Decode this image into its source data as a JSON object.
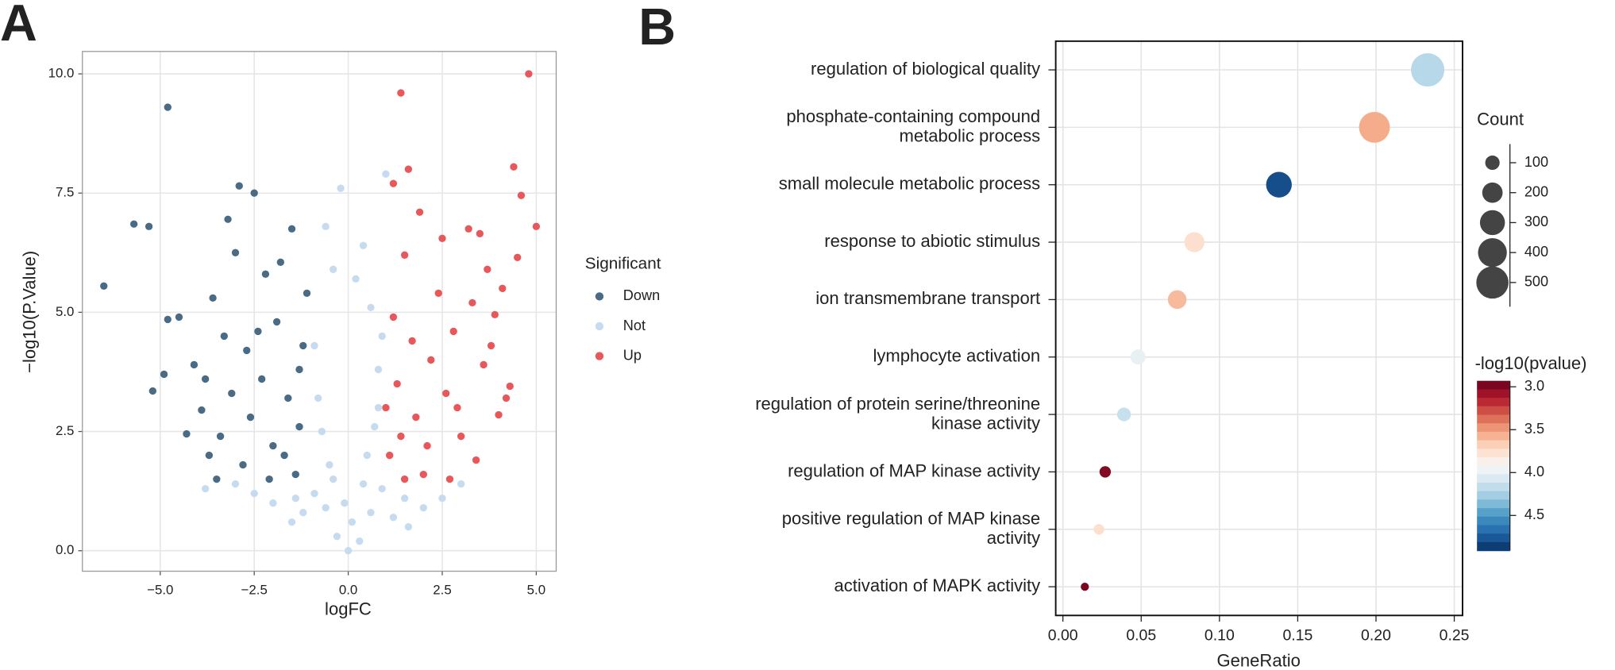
{
  "panel_labels": [
    "A",
    "B"
  ],
  "chart_data": [
    {
      "type": "scatter",
      "x_label": "logFC",
      "y_label": "−log10(P.Value)",
      "legend_title": "Significant",
      "xlim": [
        -7.07,
        5.53
      ],
      "ylim": [
        -0.43,
        10.47
      ],
      "grid": true,
      "xticks": [
        {
          "value": -5,
          "label": "−5.0"
        },
        {
          "value": -2.5,
          "label": "−2.5"
        },
        {
          "value": 0,
          "label": "0.0"
        },
        {
          "value": 2.5,
          "label": "2.5"
        },
        {
          "value": 5,
          "label": "5.0"
        }
      ],
      "yticks": [
        {
          "value": 0,
          "label": "0.0"
        },
        {
          "value": 2.5,
          "label": "2.5"
        },
        {
          "value": 5,
          "label": "5.0"
        },
        {
          "value": 7.5,
          "label": "7.5"
        },
        {
          "value": 10,
          "label": "10.0"
        }
      ],
      "series": [
        {
          "name": "Down",
          "color": "#4a6b85",
          "x": [
            -6.5,
            -5.7,
            -5.3,
            -4.8,
            -4.8,
            -4.9,
            -5.2,
            -4.5,
            -4.3,
            -3.9,
            -3.7,
            -3.5,
            -2.9,
            -2.5,
            -3.2,
            -2.2,
            -1.8,
            -1.5,
            -3.0,
            -3.6,
            -4.1,
            -3.3,
            -2.7,
            -2.3,
            -1.9,
            -1.6,
            -1.3,
            -2.0,
            -2.6,
            -3.1,
            -1.4,
            -2.1,
            -1.2,
            -1.1,
            -2.8,
            -3.4,
            -1.7,
            -2.4,
            -1.3,
            -3.8
          ],
          "y": [
            5.55,
            6.85,
            6.8,
            9.3,
            4.85,
            3.7,
            3.35,
            4.9,
            2.45,
            2.95,
            2.0,
            1.5,
            7.65,
            7.5,
            6.95,
            5.8,
            6.05,
            6.75,
            6.25,
            5.3,
            3.9,
            4.5,
            4.2,
            3.6,
            4.8,
            3.2,
            2.6,
            2.2,
            2.8,
            3.3,
            1.6,
            1.5,
            4.3,
            5.4,
            1.8,
            2.4,
            2.0,
            4.6,
            3.8,
            3.6
          ]
        },
        {
          "name": "Not",
          "color": "#c6dbef",
          "x": [
            0,
            0.3,
            -0.3,
            0.6,
            -0.6,
            0.9,
            -0.9,
            1.2,
            -1.2,
            1.6,
            -1.5,
            2.0,
            -2.0,
            0.5,
            -0.5,
            0.8,
            -0.8,
            0.9,
            -0.9,
            0.6,
            -0.4,
            -0.2,
            0.2,
            1.0,
            0.4,
            -0.6,
            2.5,
            -2.5,
            1.5,
            -1.4,
            0.1,
            -0.1,
            0.4,
            -0.4,
            3.0,
            -3.0,
            -3.8,
            0.7,
            -0.7,
            0.8
          ],
          "y": [
            0,
            0.2,
            0.3,
            0.8,
            0.9,
            1.3,
            1.2,
            0.7,
            0.8,
            0.5,
            0.6,
            0.9,
            1.0,
            2.0,
            1.8,
            3.0,
            3.2,
            4.5,
            4.3,
            5.1,
            5.9,
            7.6,
            5.7,
            7.9,
            6.4,
            6.8,
            1.1,
            1.2,
            1.1,
            1.1,
            0.6,
            1.0,
            1.4,
            1.5,
            1.4,
            1.4,
            1.3,
            2.6,
            2.5,
            3.8
          ]
        },
        {
          "name": "Up",
          "color": "#e8575a",
          "x": [
            4.8,
            1.4,
            4.4,
            4.6,
            5.0,
            1.6,
            3.2,
            3.5,
            4.5,
            4.1,
            1.9,
            2.5,
            1.2,
            1.5,
            3.7,
            3.9,
            4.3,
            4.2,
            4.0,
            3.4,
            3.0,
            2.6,
            2.2,
            1.8,
            1.3,
            1.1,
            1.5,
            2.0,
            2.8,
            3.3,
            2.4,
            1.7,
            1.2,
            1.0,
            3.6,
            2.9,
            3.8,
            1.4,
            2.1,
            2.7
          ],
          "y": [
            10.0,
            9.6,
            8.05,
            7.45,
            6.8,
            8.0,
            6.75,
            6.65,
            6.15,
            5.5,
            7.1,
            6.55,
            7.7,
            6.2,
            5.9,
            4.95,
            3.45,
            3.2,
            2.85,
            1.9,
            2.4,
            3.3,
            4.0,
            2.8,
            3.5,
            2.0,
            1.5,
            1.6,
            4.6,
            5.2,
            5.4,
            4.4,
            4.9,
            3.0,
            3.9,
            3.0,
            4.3,
            2.4,
            2.2,
            1.5
          ]
        }
      ]
    },
    {
      "type": "dot",
      "x_label": "GeneRatio",
      "categories": [
        "regulation of biological quality",
        "phosphate-containing compound\nmetabolic process",
        "small molecule metabolic process",
        "response to abiotic stimulus",
        "ion transmembrane transport",
        "lymphocyte activation",
        "regulation of protein serine/threonine\nkinase activity",
        "regulation of MAP kinase activity",
        "positive regulation of MAP kinase\nactivity",
        "activation of MAPK activity"
      ],
      "values": [
        0.233,
        0.199,
        0.138,
        0.084,
        0.073,
        0.048,
        0.039,
        0.027,
        0.023,
        0.014
      ],
      "counts": [
        536,
        458,
        317,
        193,
        168,
        110,
        90,
        62,
        53,
        32
      ],
      "neglog10p": [
        4.2,
        3.55,
        4.8,
        3.75,
        3.6,
        4.0,
        4.15,
        3.0,
        3.75,
        2.98
      ],
      "xlim": [
        -0.0046,
        0.2553
      ],
      "xticks": [
        {
          "value": 0,
          "label": "0.00"
        },
        0.05,
        {
          "value": 0.1,
          "label": "0.10"
        },
        0.15,
        {
          "value": 0.2,
          "label": "0.20"
        },
        0.25
      ],
      "grid": true,
      "size_legend_title": "Count",
      "size_ticks": [
        100,
        200,
        300,
        400,
        500
      ],
      "color_legend_title": "-log10(pvalue)",
      "clim": [
        2.93,
        4.91
      ],
      "cticks": [
        {
          "value": 3,
          "label": "3.0"
        },
        3.5,
        {
          "value": 4,
          "label": "4.0"
        },
        4.5
      ],
      "colorscale": [
        "#67001f",
        "#b2182b",
        "#d6604d",
        "#f4a582",
        "#fddbc7",
        "#f7f7f7",
        "#d1e5f0",
        "#92c5de",
        "#4393c3",
        "#2166ac",
        "#053061"
      ]
    }
  ]
}
